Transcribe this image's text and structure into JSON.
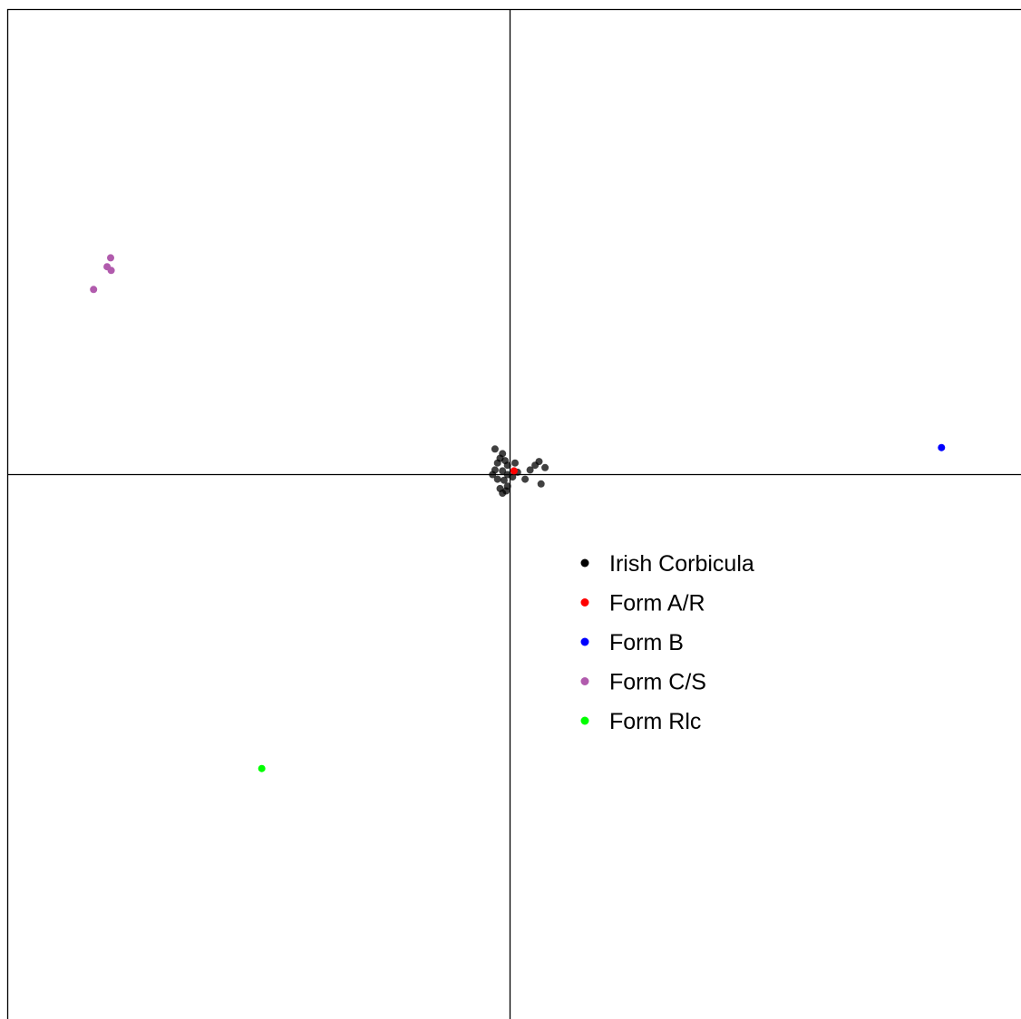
{
  "chart_data": {
    "type": "scatter",
    "title": "",
    "xlabel": "",
    "ylabel": "",
    "xlim": [
      -1.0,
      1.0
    ],
    "ylim": [
      -1.0,
      1.0
    ],
    "grid": false,
    "axes": "crosshair through origin, no tick labels",
    "legend_position": "center-right, below horizontal axis",
    "series": [
      {
        "name": "Irish Corbicula",
        "color": "#000000",
        "points": [
          [
            -0.03,
            0.055
          ],
          [
            -0.015,
            0.045
          ],
          [
            -0.02,
            0.035
          ],
          [
            -0.025,
            0.025
          ],
          [
            -0.01,
            0.03
          ],
          [
            -0.005,
            0.02
          ],
          [
            0.01,
            0.025
          ],
          [
            -0.03,
            0.01
          ],
          [
            -0.015,
            0.008
          ],
          [
            -0.005,
            0.0
          ],
          [
            -0.025,
            -0.01
          ],
          [
            -0.012,
            -0.012
          ],
          [
            0.005,
            -0.005
          ],
          [
            0.015,
            0.005
          ],
          [
            -0.02,
            -0.03
          ],
          [
            -0.008,
            -0.035
          ],
          [
            -0.015,
            -0.04
          ],
          [
            0.04,
            0.01
          ],
          [
            0.05,
            0.02
          ],
          [
            0.058,
            0.028
          ],
          [
            0.07,
            0.015
          ],
          [
            0.062,
            -0.02
          ],
          [
            0.03,
            -0.01
          ],
          [
            -0.005,
            -0.025
          ],
          [
            -0.035,
            0.0
          ]
        ]
      },
      {
        "name": "Form A/R",
        "color": "#ff0000",
        "points": [
          [
            0.008,
            0.008
          ]
        ]
      },
      {
        "name": "Form B",
        "color": "#0000ff",
        "points": [
          [
            0.862,
            0.058
          ]
        ]
      },
      {
        "name": "Form C/S",
        "color": "#b15bad",
        "points": [
          [
            -0.798,
            0.466
          ],
          [
            -0.805,
            0.447
          ],
          [
            -0.797,
            0.439
          ],
          [
            -0.832,
            0.398
          ]
        ]
      },
      {
        "name": "Form Rlc",
        "color": "#00ff00",
        "points": [
          [
            -0.496,
            -0.632
          ]
        ]
      }
    ]
  }
}
